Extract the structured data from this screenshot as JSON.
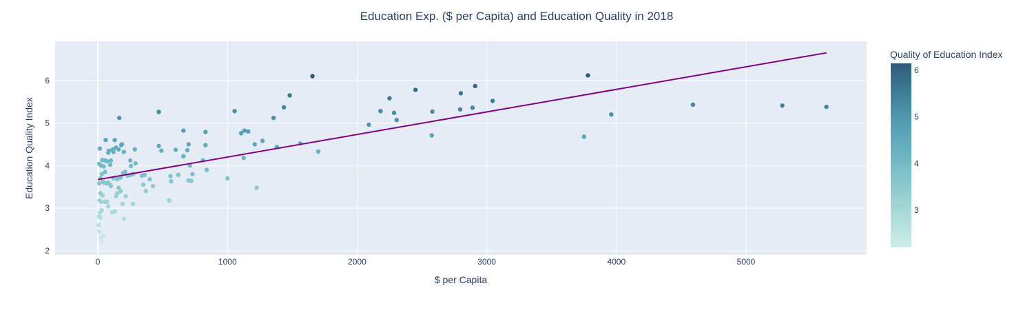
{
  "chart_data": {
    "type": "scatter",
    "title": "Education Exp. ($ per Capita) and Education Quality in 2018",
    "xlabel": "$ per Capita",
    "ylabel": "Education Quality Index",
    "xlim": [
      -330,
      5930
    ],
    "ylim": [
      1.9,
      6.92
    ],
    "x_ticks": [
      0,
      1000,
      2000,
      3000,
      4000,
      5000
    ],
    "y_ticks": [
      2,
      3,
      4,
      5,
      6
    ],
    "grid": true,
    "plot_bg": "#e5ecf6",
    "colorbar": {
      "title": "Quality of Education Index",
      "range": [
        2.2,
        6.15
      ],
      "ticks": [
        3,
        4,
        5,
        6
      ],
      "colorscale": [
        "#cdece8",
        "#9cd3d3",
        "#6bb5c3",
        "#4a91a8",
        "#2e5a78"
      ]
    },
    "trendline": {
      "x": [
        0,
        5620
      ],
      "y": [
        3.67,
        6.65
      ],
      "color": "#800080"
    },
    "points": [
      [
        5,
        2.6
      ],
      [
        10,
        2.45
      ],
      [
        18,
        2.3
      ],
      [
        28,
        2.22
      ],
      [
        40,
        2.35
      ],
      [
        8,
        2.8
      ],
      [
        15,
        2.9
      ],
      [
        20,
        2.78
      ],
      [
        30,
        2.95
      ],
      [
        12,
        3.18
      ],
      [
        18,
        3.35
      ],
      [
        25,
        3.15
      ],
      [
        35,
        3.3
      ],
      [
        45,
        3.6
      ],
      [
        55,
        3.15
      ],
      [
        70,
        3.15
      ],
      [
        80,
        3.04
      ],
      [
        95,
        3.55
      ],
      [
        110,
        2.9
      ],
      [
        130,
        2.92
      ],
      [
        140,
        3.28
      ],
      [
        150,
        3.35
      ],
      [
        160,
        3.48
      ],
      [
        175,
        3.4
      ],
      [
        190,
        3.1
      ],
      [
        200,
        2.75
      ],
      [
        215,
        3.28
      ],
      [
        270,
        3.1
      ],
      [
        10,
        3.58
      ],
      [
        20,
        3.7
      ],
      [
        30,
        3.8
      ],
      [
        40,
        3.62
      ],
      [
        55,
        3.85
      ],
      [
        65,
        3.58
      ],
      [
        80,
        3.6
      ],
      [
        100,
        3.52
      ],
      [
        120,
        3.7
      ],
      [
        150,
        3.68
      ],
      [
        175,
        3.72
      ],
      [
        195,
        3.82
      ],
      [
        210,
        3.85
      ],
      [
        230,
        3.76
      ],
      [
        250,
        3.78
      ],
      [
        270,
        3.8
      ],
      [
        340,
        3.76
      ],
      [
        350,
        3.55
      ],
      [
        360,
        3.78
      ],
      [
        370,
        3.4
      ],
      [
        400,
        3.68
      ],
      [
        425,
        3.52
      ],
      [
        550,
        3.18
      ],
      [
        560,
        3.75
      ],
      [
        565,
        3.63
      ],
      [
        620,
        3.78
      ],
      [
        700,
        3.65
      ],
      [
        720,
        3.64
      ],
      [
        730,
        3.8
      ],
      [
        1000,
        3.7
      ],
      [
        1225,
        3.48
      ],
      [
        10,
        4.04
      ],
      [
        15,
        4.4
      ],
      [
        25,
        4.0
      ],
      [
        35,
        4.13
      ],
      [
        45,
        3.98
      ],
      [
        55,
        4.12
      ],
      [
        60,
        4.6
      ],
      [
        70,
        4.1
      ],
      [
        80,
        4.3
      ],
      [
        85,
        4.35
      ],
      [
        95,
        4.02
      ],
      [
        100,
        4.12
      ],
      [
        115,
        4.38
      ],
      [
        120,
        4.32
      ],
      [
        130,
        4.6
      ],
      [
        140,
        4.42
      ],
      [
        160,
        4.38
      ],
      [
        180,
        4.48
      ],
      [
        185,
        4.5
      ],
      [
        200,
        4.32
      ],
      [
        250,
        4.12
      ],
      [
        255,
        3.99
      ],
      [
        290,
        4.05
      ],
      [
        285,
        4.38
      ],
      [
        470,
        4.46
      ],
      [
        490,
        4.35
      ],
      [
        600,
        4.37
      ],
      [
        660,
        4.22
      ],
      [
        690,
        4.36
      ],
      [
        700,
        4.5
      ],
      [
        710,
        4.0
      ],
      [
        810,
        4.12
      ],
      [
        830,
        4.48
      ],
      [
        840,
        3.9
      ],
      [
        165,
        5.12
      ],
      [
        470,
        5.26
      ],
      [
        660,
        4.82
      ],
      [
        830,
        4.79
      ],
      [
        1055,
        5.28
      ],
      [
        1105,
        4.76
      ],
      [
        1130,
        4.82
      ],
      [
        1125,
        4.18
      ],
      [
        1160,
        4.8
      ],
      [
        1210,
        4.5
      ],
      [
        1270,
        4.58
      ],
      [
        1355,
        5.12
      ],
      [
        1380,
        4.44
      ],
      [
        1435,
        5.37
      ],
      [
        1480,
        5.65
      ],
      [
        1560,
        4.52
      ],
      [
        1655,
        6.1
      ],
      [
        1700,
        4.33
      ],
      [
        2090,
        4.96
      ],
      [
        2180,
        5.28
      ],
      [
        2250,
        5.58
      ],
      [
        2285,
        5.24
      ],
      [
        2305,
        5.07
      ],
      [
        2450,
        5.78
      ],
      [
        2575,
        4.71
      ],
      [
        2580,
        5.27
      ],
      [
        2795,
        5.32
      ],
      [
        2800,
        5.7
      ],
      [
        2890,
        5.36
      ],
      [
        2910,
        5.87
      ],
      [
        3045,
        5.52
      ],
      [
        3750,
        4.68
      ],
      [
        3780,
        6.12
      ],
      [
        3960,
        5.2
      ],
      [
        4590,
        5.43
      ],
      [
        5280,
        5.41
      ],
      [
        5620,
        5.38
      ]
    ]
  }
}
